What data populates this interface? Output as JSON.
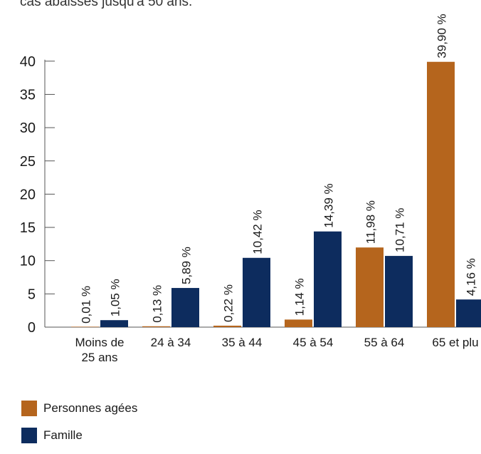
{
  "caption": "cas abaissés jusqu'à 50 ans.",
  "colors": {
    "personnes": "#b5651d",
    "famille": "#0d2c5e",
    "axis": "#555555"
  },
  "chart_data": {
    "type": "bar",
    "categories": [
      "Moins de\n25 ans",
      "24 à 34",
      "35 à 44",
      "45 à 54",
      "55 à 64",
      "65 et plu"
    ],
    "series": [
      {
        "name": "Personnes agées",
        "values": [
          0.01,
          0.13,
          0.22,
          1.14,
          11.98,
          39.9
        ],
        "labels": [
          "0,01 %",
          "0,13 %",
          "0,22 %",
          "1,14 %",
          "11,98 %",
          "39,90 %"
        ]
      },
      {
        "name": "Famille",
        "values": [
          1.05,
          5.89,
          10.42,
          14.39,
          10.71,
          4.16
        ],
        "labels": [
          "1,05 %",
          "5,89 %",
          "10,42 %",
          "14,39 %",
          "10,71 %",
          "4,16 %"
        ]
      }
    ],
    "yticks": [
      "0",
      "5",
      "10",
      "15",
      "20",
      "25",
      "30",
      "35",
      "40"
    ],
    "ylim": [
      0,
      40
    ],
    "grid": false,
    "legend_position": "bottom-left"
  }
}
